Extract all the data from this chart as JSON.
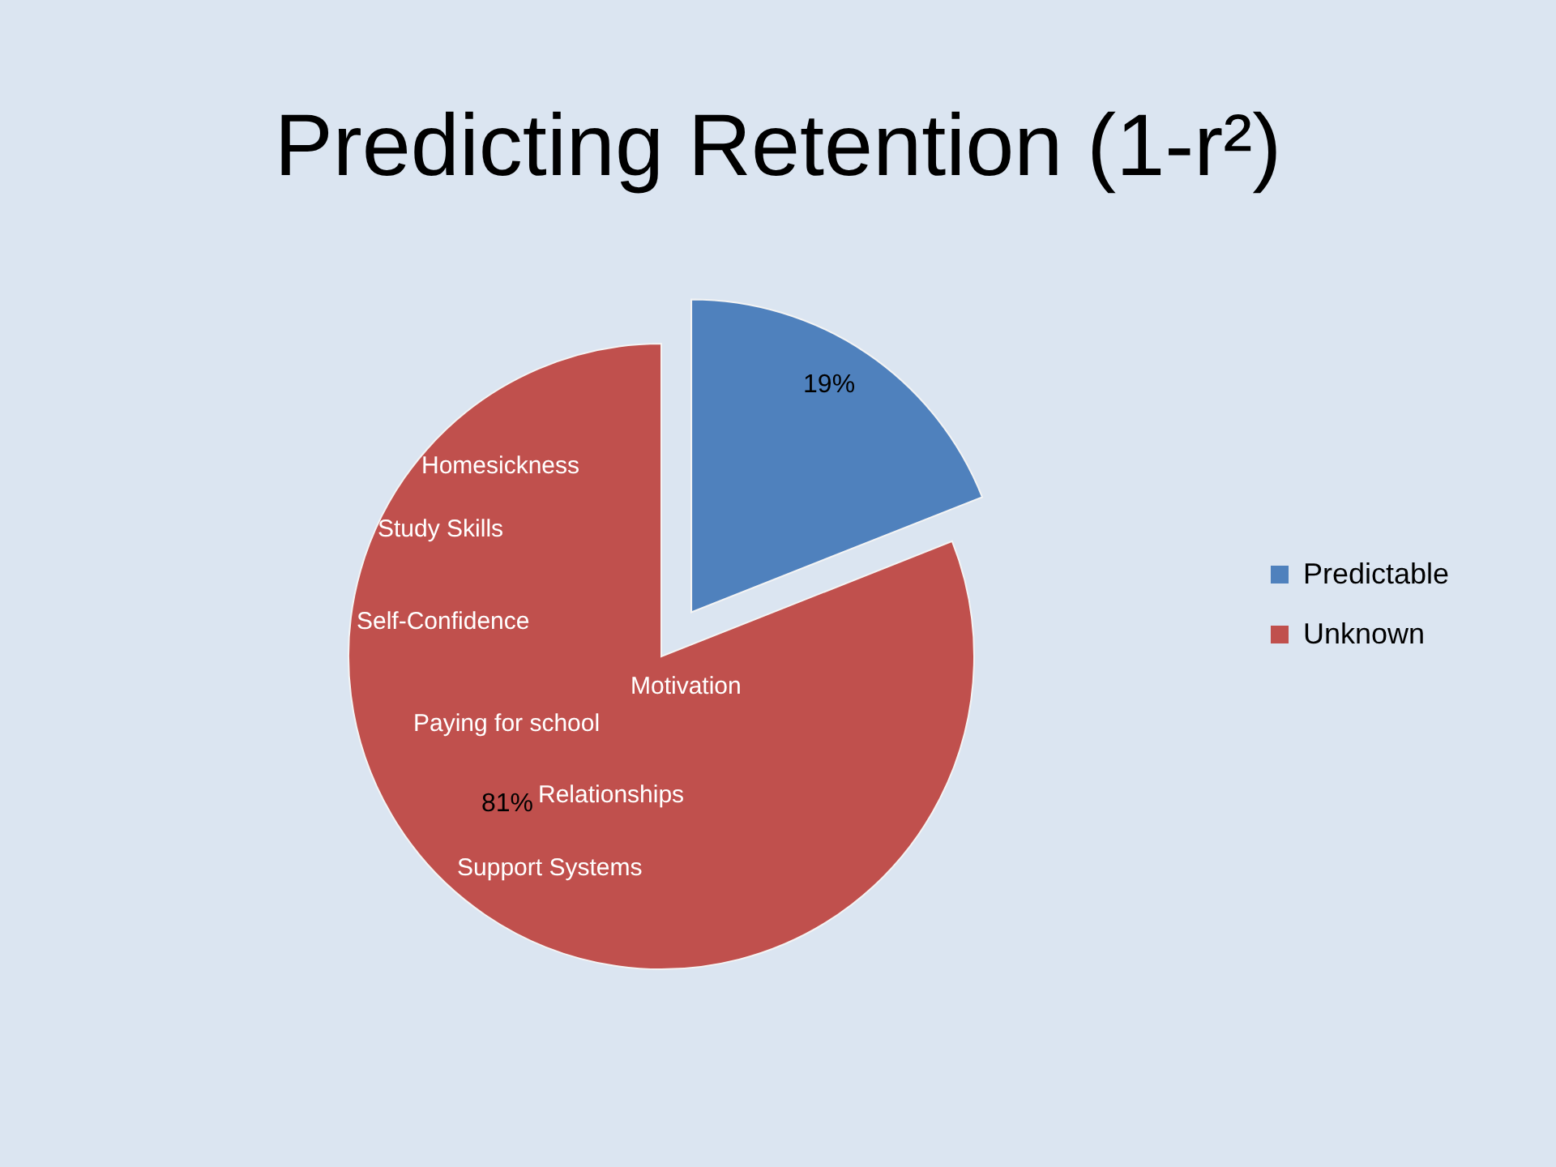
{
  "chart_data": {
    "type": "pie",
    "title": "Predicting Retention (1-r²)",
    "categories": [
      "Predictable",
      "Unknown"
    ],
    "values": [
      19,
      81
    ],
    "colors": [
      "#4f81bd",
      "#c0504d"
    ],
    "value_labels": [
      "19%",
      "81%"
    ],
    "legend": "right",
    "annotations": [
      "Homesickness",
      "Study Skills",
      "Self-Confidence",
      "Motivation",
      "Paying for school",
      "Relationships",
      "Support Systems"
    ]
  }
}
